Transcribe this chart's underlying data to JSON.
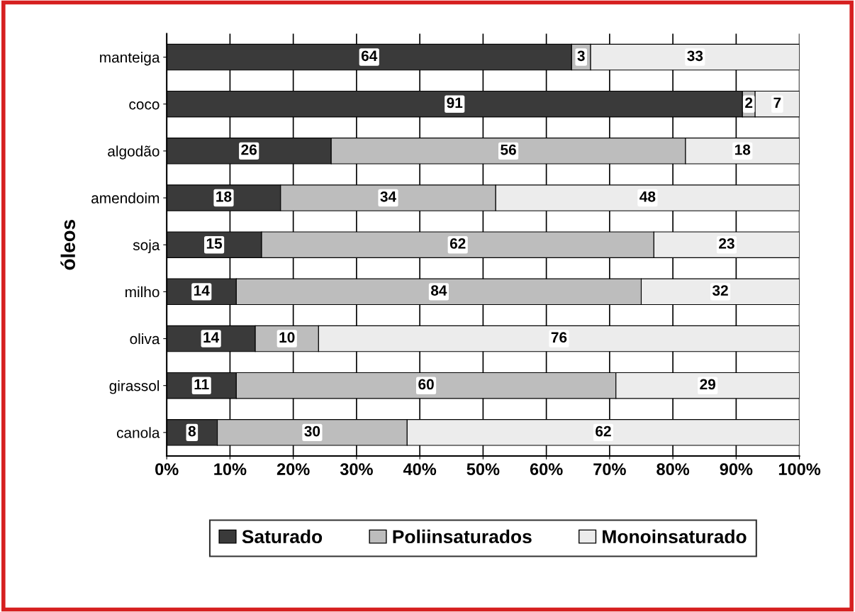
{
  "chart_data": {
    "type": "bar",
    "orientation": "horizontal",
    "stacked": true,
    "ylabel": "óleos",
    "categories": [
      "manteiga",
      "coco",
      "algodão",
      "amendoim",
      "soja",
      "milho",
      "oliva",
      "girassol",
      "canola"
    ],
    "series": [
      {
        "name": "Saturado",
        "color": "#3a3a3a",
        "values": [
          64,
          91,
          26,
          18,
          15,
          11,
          14,
          11,
          8
        ],
        "value_labels": [
          "64",
          "91",
          "26",
          "18",
          "15",
          null,
          "14",
          "11",
          "8"
        ]
      },
      {
        "name": "Poliinsaturados",
        "color": "#bdbdbd",
        "values": [
          3,
          2,
          56,
          34,
          62,
          64,
          10,
          60,
          30
        ],
        "value_labels": [
          "3",
          "2",
          "56",
          "34",
          "62",
          null,
          "10",
          "60",
          "30"
        ]
      },
      {
        "name": "Monoinsaturado",
        "color": "#ececec",
        "values": [
          33,
          7,
          18,
          48,
          23,
          25,
          76,
          29,
          62
        ],
        "value_labels": [
          "33",
          "7",
          "18",
          "48",
          "23",
          null,
          "76",
          "29",
          "62"
        ]
      }
    ],
    "xlim": [
      0,
      100
    ],
    "xticks": [
      {
        "value": 0,
        "label": "0%"
      },
      {
        "value": 10,
        "label": "10%"
      },
      {
        "value": 20,
        "label": "20%"
      },
      {
        "value": 30,
        "label": "30%"
      },
      {
        "value": 40,
        "label": "40%"
      },
      {
        "value": 50,
        "label": "50%"
      },
      {
        "value": 60,
        "label": "60%"
      },
      {
        "value": 70,
        "label": "70%"
      },
      {
        "value": 80,
        "label": "80%"
      },
      {
        "value": 90,
        "label": "90%"
      },
      {
        "value": 100,
        "label": "100%"
      }
    ],
    "annotations": [
      {
        "text": "14",
        "x": 5.5,
        "y": "milho"
      },
      {
        "text": "84",
        "x": 43,
        "y": "milho"
      },
      {
        "text": "32",
        "x": 87.5,
        "y": "milho"
      }
    ],
    "grid": "x",
    "legend": "bottom"
  }
}
